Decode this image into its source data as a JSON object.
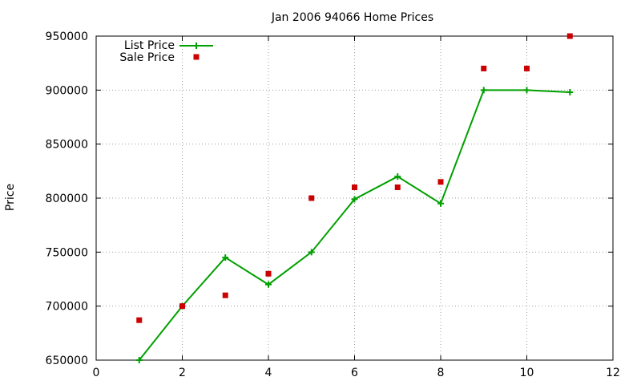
{
  "chart_data": {
    "type": "scatter",
    "title": "Jan 2006 94066 Home Prices",
    "xlabel": "",
    "ylabel": "Price",
    "xlim": [
      0,
      12
    ],
    "ylim": [
      650000,
      950000
    ],
    "xticks": [
      0,
      2,
      4,
      6,
      8,
      10,
      12
    ],
    "yticks": [
      650000,
      700000,
      750000,
      800000,
      850000,
      900000,
      950000
    ],
    "grid": true,
    "legend_position": "top-left",
    "series": [
      {
        "name": "List Price",
        "style": "line-with-plus-markers",
        "color": "#00a000",
        "x": [
          1,
          2,
          3,
          4,
          5,
          6,
          7,
          8,
          9,
          10,
          11
        ],
        "y": [
          650000,
          700000,
          745000,
          720000,
          750000,
          799000,
          820000,
          795000,
          900000,
          900000,
          898000
        ]
      },
      {
        "name": "Sale Price",
        "style": "square-markers",
        "color": "#cc0000",
        "x": [
          1,
          2,
          3,
          4,
          5,
          6,
          7,
          8,
          9,
          10,
          11
        ],
        "y": [
          687000,
          700000,
          710000,
          730000,
          800000,
          810000,
          810000,
          815000,
          920000,
          920000,
          950000
        ]
      }
    ]
  }
}
